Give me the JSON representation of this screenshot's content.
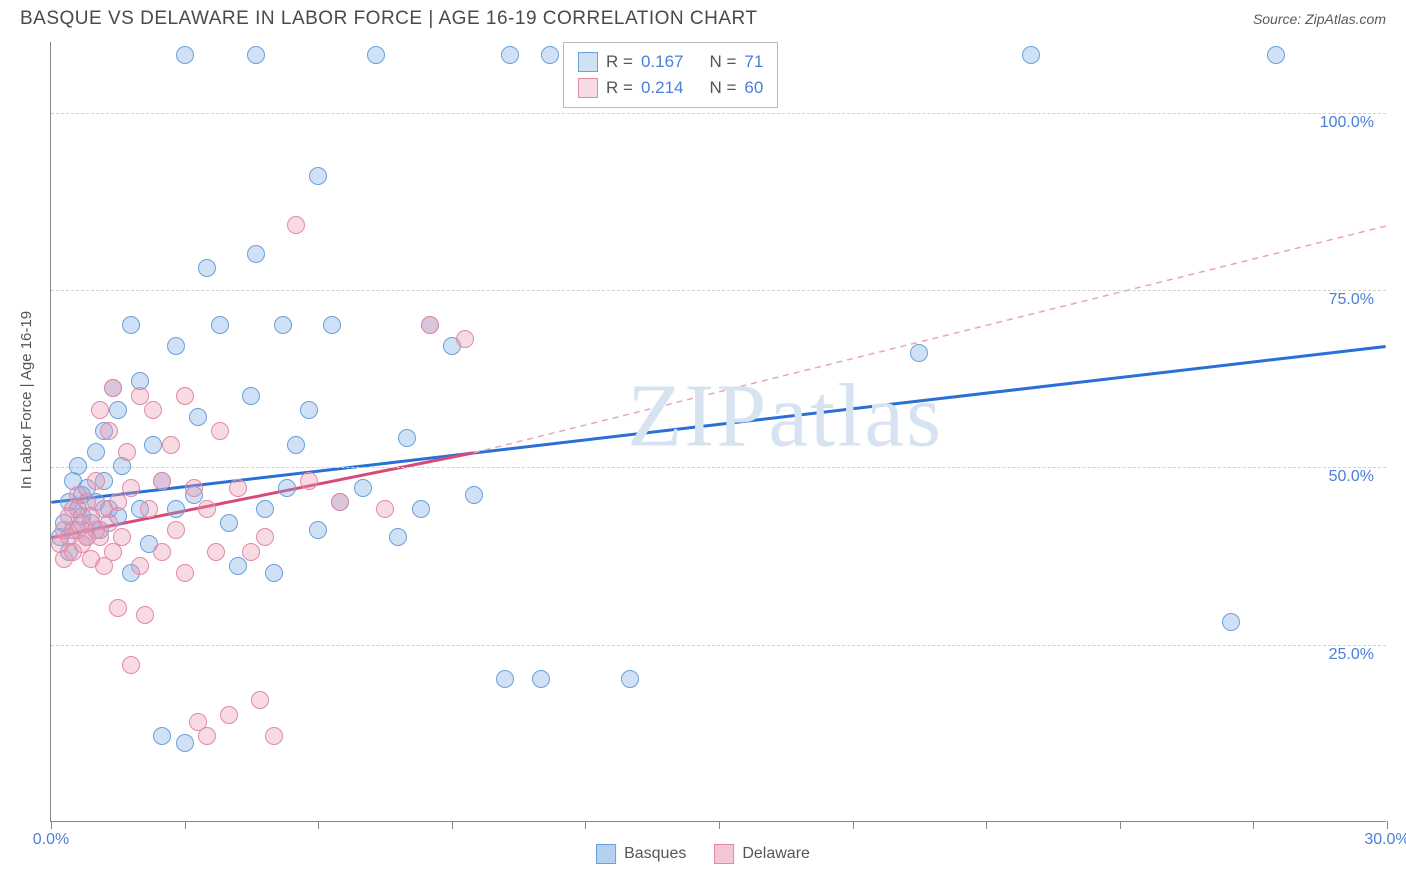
{
  "header": {
    "title": "BASQUE VS DELAWARE IN LABOR FORCE | AGE 16-19 CORRELATION CHART",
    "source": "Source: ZipAtlas.com"
  },
  "watermark": "ZIPatlas",
  "chart": {
    "type": "scatter",
    "ylabel": "In Labor Force | Age 16-19",
    "xlim": [
      0,
      30
    ],
    "ylim": [
      0,
      110
    ],
    "x_ticks": [
      0,
      3,
      6,
      9,
      12,
      15,
      18,
      21,
      24,
      27,
      30
    ],
    "x_tick_labels": {
      "0": "0.0%",
      "30": "30.0%"
    },
    "y_gridlines": [
      25,
      50,
      75,
      100
    ],
    "y_tick_labels": {
      "25": "25.0%",
      "50": "50.0%",
      "75": "75.0%",
      "100": "100.0%"
    },
    "background_color": "#ffffff",
    "grid_color": "#d0d0d0",
    "axis_color": "#888888",
    "point_radius": 9,
    "series": [
      {
        "name": "Basques",
        "fill": "rgba(120,170,230,0.35)",
        "stroke": "#6aa0dc",
        "r": 0.167,
        "n": 71,
        "trend": {
          "x1": 0,
          "y1": 45,
          "x2": 30,
          "y2": 67,
          "color": "#2a6fd6",
          "width": 3,
          "dash": ""
        },
        "points": [
          [
            0.2,
            40
          ],
          [
            0.3,
            42
          ],
          [
            0.4,
            45
          ],
          [
            0.4,
            38
          ],
          [
            0.5,
            48
          ],
          [
            0.5,
            41
          ],
          [
            0.6,
            44
          ],
          [
            0.6,
            50
          ],
          [
            0.7,
            43
          ],
          [
            0.7,
            46
          ],
          [
            0.8,
            40
          ],
          [
            0.8,
            47
          ],
          [
            0.9,
            42
          ],
          [
            1.0,
            45
          ],
          [
            1.0,
            52
          ],
          [
            1.1,
            41
          ],
          [
            1.2,
            48
          ],
          [
            1.2,
            55
          ],
          [
            1.3,
            44
          ],
          [
            1.4,
            61
          ],
          [
            1.5,
            43
          ],
          [
            1.5,
            58
          ],
          [
            1.6,
            50
          ],
          [
            1.8,
            35
          ],
          [
            1.8,
            70
          ],
          [
            2.0,
            44
          ],
          [
            2.0,
            62
          ],
          [
            2.2,
            39
          ],
          [
            2.3,
            53
          ],
          [
            2.5,
            12
          ],
          [
            2.5,
            48
          ],
          [
            2.8,
            44
          ],
          [
            2.8,
            67
          ],
          [
            3.0,
            11
          ],
          [
            3.0,
            108
          ],
          [
            3.2,
            46
          ],
          [
            3.3,
            57
          ],
          [
            3.5,
            78
          ],
          [
            3.8,
            70
          ],
          [
            4.0,
            42
          ],
          [
            4.2,
            36
          ],
          [
            4.5,
            60
          ],
          [
            4.6,
            80
          ],
          [
            4.6,
            108
          ],
          [
            4.8,
            44
          ],
          [
            5.0,
            35
          ],
          [
            5.2,
            70
          ],
          [
            5.3,
            47
          ],
          [
            5.5,
            53
          ],
          [
            5.8,
            58
          ],
          [
            6.0,
            91
          ],
          [
            6.0,
            41
          ],
          [
            6.3,
            70
          ],
          [
            6.5,
            45
          ],
          [
            7.0,
            47
          ],
          [
            7.3,
            108
          ],
          [
            7.8,
            40
          ],
          [
            8.0,
            54
          ],
          [
            8.3,
            44
          ],
          [
            8.5,
            70
          ],
          [
            9.0,
            67
          ],
          [
            9.5,
            46
          ],
          [
            10.3,
            108
          ],
          [
            10.2,
            20
          ],
          [
            11.0,
            20
          ],
          [
            11.2,
            108
          ],
          [
            13.0,
            20
          ],
          [
            19.5,
            66
          ],
          [
            22.0,
            108
          ],
          [
            26.5,
            28
          ],
          [
            27.5,
            108
          ]
        ]
      },
      {
        "name": "Delaware",
        "fill": "rgba(235,150,175,0.35)",
        "stroke": "#e28aa5",
        "r": 0.214,
        "n": 60,
        "trend_solid": {
          "x1": 0,
          "y1": 40,
          "x2": 9.5,
          "y2": 52,
          "color": "#d64a77",
          "width": 3,
          "dash": ""
        },
        "trend_dashed": {
          "x1": 9.5,
          "y1": 52,
          "x2": 30,
          "y2": 84,
          "color": "#e9a5b8",
          "width": 1.5,
          "dash": "6,5"
        },
        "points": [
          [
            0.2,
            39
          ],
          [
            0.3,
            41
          ],
          [
            0.3,
            37
          ],
          [
            0.4,
            43
          ],
          [
            0.4,
            40
          ],
          [
            0.5,
            38
          ],
          [
            0.5,
            44
          ],
          [
            0.6,
            41
          ],
          [
            0.6,
            46
          ],
          [
            0.7,
            39
          ],
          [
            0.7,
            42
          ],
          [
            0.8,
            40
          ],
          [
            0.8,
            45
          ],
          [
            0.9,
            43
          ],
          [
            0.9,
            37
          ],
          [
            1.0,
            41
          ],
          [
            1.0,
            48
          ],
          [
            1.1,
            40
          ],
          [
            1.1,
            58
          ],
          [
            1.2,
            44
          ],
          [
            1.2,
            36
          ],
          [
            1.3,
            42
          ],
          [
            1.3,
            55
          ],
          [
            1.4,
            38
          ],
          [
            1.4,
            61
          ],
          [
            1.5,
            45
          ],
          [
            1.5,
            30
          ],
          [
            1.6,
            40
          ],
          [
            1.7,
            52
          ],
          [
            1.8,
            22
          ],
          [
            1.8,
            47
          ],
          [
            2.0,
            60
          ],
          [
            2.0,
            36
          ],
          [
            2.1,
            29
          ],
          [
            2.2,
            44
          ],
          [
            2.3,
            58
          ],
          [
            2.5,
            38
          ],
          [
            2.5,
            48
          ],
          [
            2.7,
            53
          ],
          [
            2.8,
            41
          ],
          [
            3.0,
            35
          ],
          [
            3.0,
            60
          ],
          [
            3.2,
            47
          ],
          [
            3.3,
            14
          ],
          [
            3.5,
            44
          ],
          [
            3.5,
            12
          ],
          [
            3.7,
            38
          ],
          [
            3.8,
            55
          ],
          [
            4.0,
            15
          ],
          [
            4.2,
            47
          ],
          [
            4.5,
            38
          ],
          [
            4.7,
            17
          ],
          [
            4.8,
            40
          ],
          [
            5.0,
            12
          ],
          [
            5.5,
            84
          ],
          [
            5.8,
            48
          ],
          [
            6.5,
            45
          ],
          [
            7.5,
            44
          ],
          [
            8.5,
            70
          ],
          [
            9.3,
            68
          ]
        ]
      }
    ]
  },
  "legend_top": {
    "r_label": "R =",
    "n_label": "N ="
  },
  "legend_bottom": [
    {
      "label": "Basques",
      "fill": "rgba(120,170,230,0.55)",
      "stroke": "#6aa0dc"
    },
    {
      "label": "Delaware",
      "fill": "rgba(235,150,175,0.55)",
      "stroke": "#e28aa5"
    }
  ]
}
